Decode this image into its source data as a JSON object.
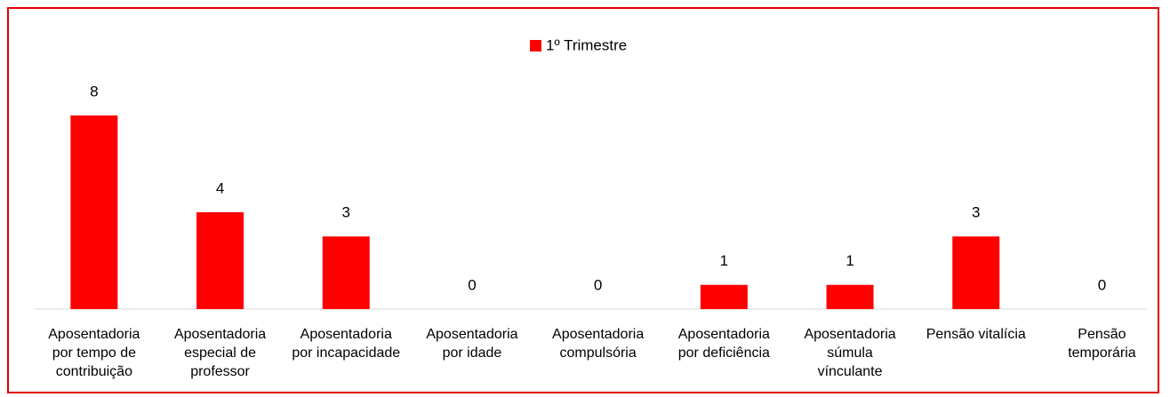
{
  "chart_data": {
    "type": "bar",
    "categories": [
      "Aposentadoria por tempo de contribuição",
      "Aposentadoria especial de professor",
      "Aposentadoria por incapacidade",
      "Aposentadoria por idade",
      "Aposentadoria compulsória",
      "Aposentadoria por deficiência",
      "Aposentadoria súmula vínculante",
      "Pensão vitalícia",
      "Pensão temporária"
    ],
    "series": [
      {
        "name": "1º Trimestre",
        "color": "#ff0000",
        "values": [
          8,
          4,
          3,
          0,
          0,
          1,
          1,
          3,
          0
        ]
      }
    ],
    "legend": "top"
  }
}
